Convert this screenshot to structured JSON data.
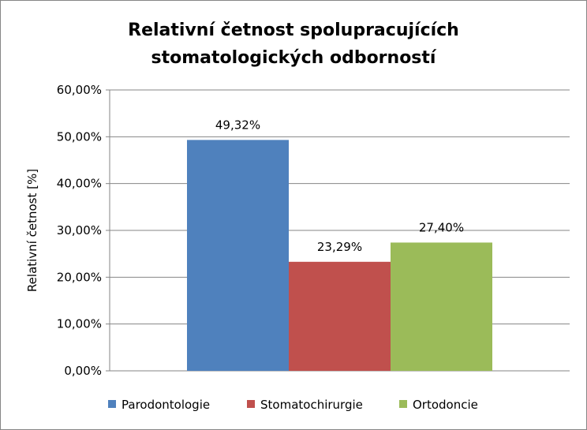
{
  "chart_data": {
    "type": "bar",
    "title_lines": [
      "Relativní četnost spolupracujících",
      "stomatologických odborností"
    ],
    "ylabel": "Relativní četnost [%]",
    "xlabel": "",
    "ylim": [
      0,
      60
    ],
    "y_ticks": [
      "0,00%",
      "10,00%",
      "20,00%",
      "30,00%",
      "40,00%",
      "50,00%",
      "60,00%"
    ],
    "y_tick_values": [
      0,
      10,
      20,
      30,
      40,
      50,
      60
    ],
    "grid": true,
    "legend_position": "bottom",
    "series": [
      {
        "name": "Parodontologie",
        "value": 49.32,
        "label": "49,32%",
        "color": "#4F81BD"
      },
      {
        "name": "Stomatochirurgie",
        "value": 23.29,
        "label": "23,29%",
        "color": "#C0504D"
      },
      {
        "name": "Ortodoncie",
        "value": 27.4,
        "label": "27,40%",
        "color": "#9BBB59"
      }
    ]
  }
}
